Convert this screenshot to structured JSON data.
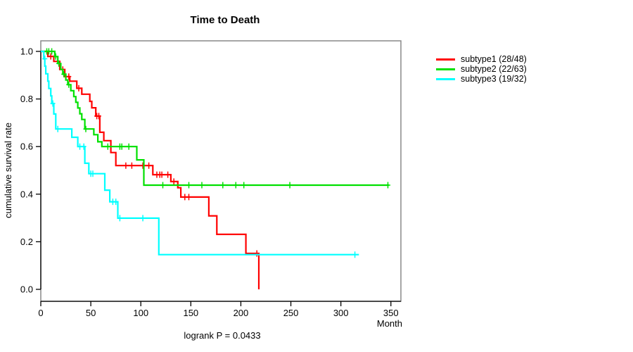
{
  "title": "Time to Death",
  "y_axis": {
    "label": "cumulative survival rate",
    "ticks": [
      0,
      0.2,
      0.4,
      0.6,
      0.8,
      1.0
    ],
    "tick_labels": [
      "0.0",
      "0.2",
      "0.4",
      "0.6",
      "0.8",
      "1.0"
    ]
  },
  "x_axis": {
    "label": "Month",
    "ticks": [
      0,
      50,
      100,
      150,
      200,
      250,
      300,
      350
    ],
    "tick_labels": [
      "0",
      "50",
      "100",
      "150",
      "200",
      "250",
      "300",
      "350"
    ]
  },
  "footer": {
    "annotation": "logrank P = 0.0433"
  },
  "legend": {
    "position": "right",
    "items": [
      {
        "label": "subtype1 (28/48)",
        "color": "#FF0000"
      },
      {
        "label": "subtype2 (22/63)",
        "color": "#00E000"
      },
      {
        "label": "subtype3 (19/32)",
        "color": "#00FFFF"
      }
    ]
  },
  "colors": {
    "plot_border": "#888888",
    "axis": "#000000",
    "text": "#000000",
    "background": "#FFFFFF"
  },
  "chart_data": {
    "type": "line",
    "variant": "kaplan-meier-step",
    "title": "Time to Death",
    "xlabel": "Month",
    "ylabel": "cumulative survival rate",
    "xlim": [
      0,
      360
    ],
    "ylim": [
      0,
      1
    ],
    "grid": false,
    "legend_position": "right-outside",
    "annotation": "logrank P = 0.0433",
    "series": [
      {
        "id": "subtype1",
        "name": "subtype1 (28/48)",
        "color": "#FF0000",
        "n": 48,
        "events": 28,
        "end_month": 218,
        "steps": [
          [
            0,
            1
          ],
          [
            7,
            0.979
          ],
          [
            13,
            0.958
          ],
          [
            19,
            0.924
          ],
          [
            24,
            0.894
          ],
          [
            29,
            0.875
          ],
          [
            36,
            0.845
          ],
          [
            41,
            0.82
          ],
          [
            49,
            0.79
          ],
          [
            51,
            0.763
          ],
          [
            55,
            0.728
          ],
          [
            59,
            0.66
          ],
          [
            63,
            0.625
          ],
          [
            70,
            0.575
          ],
          [
            75,
            0.52
          ],
          [
            112,
            0.482
          ],
          [
            130,
            0.453
          ],
          [
            137,
            0.427
          ],
          [
            140,
            0.388
          ],
          [
            168,
            0.309
          ],
          [
            176,
            0.231
          ],
          [
            205,
            0.151
          ],
          [
            218,
            0
          ]
        ],
        "censors": [
          [
            10,
            0.979
          ],
          [
            22,
            0.924
          ],
          [
            28,
            0.894
          ],
          [
            38,
            0.845
          ],
          [
            56,
            0.728
          ],
          [
            58,
            0.728
          ],
          [
            85,
            0.52
          ],
          [
            91,
            0.52
          ],
          [
            102,
            0.52
          ],
          [
            108,
            0.52
          ],
          [
            116,
            0.482
          ],
          [
            119,
            0.482
          ],
          [
            121,
            0.482
          ],
          [
            127,
            0.482
          ],
          [
            133,
            0.453
          ],
          [
            144,
            0.388
          ],
          [
            148,
            0.388
          ],
          [
            216,
            0.151
          ]
        ]
      },
      {
        "id": "subtype2",
        "name": "subtype2 (22/63)",
        "color": "#00E000",
        "n": 63,
        "events": 22,
        "end_month": 348,
        "steps": [
          [
            0,
            1
          ],
          [
            14,
            0.978
          ],
          [
            17,
            0.949
          ],
          [
            20,
            0.924
          ],
          [
            22,
            0.904
          ],
          [
            25,
            0.88
          ],
          [
            27,
            0.86
          ],
          [
            30,
            0.835
          ],
          [
            33,
            0.81
          ],
          [
            35,
            0.786
          ],
          [
            37,
            0.762
          ],
          [
            39,
            0.738
          ],
          [
            41,
            0.714
          ],
          [
            44,
            0.674
          ],
          [
            53,
            0.65
          ],
          [
            57,
            0.62
          ],
          [
            61,
            0.6
          ],
          [
            96,
            0.544
          ],
          [
            103,
            0.438
          ]
        ],
        "censors": [
          [
            6,
            1
          ],
          [
            8,
            1
          ],
          [
            11,
            1
          ],
          [
            15,
            0.978
          ],
          [
            18,
            0.949
          ],
          [
            23,
            0.904
          ],
          [
            28,
            0.86
          ],
          [
            45,
            0.674
          ],
          [
            67,
            0.6
          ],
          [
            79,
            0.6
          ],
          [
            81,
            0.6
          ],
          [
            88,
            0.6
          ],
          [
            122,
            0.438
          ],
          [
            148,
            0.438
          ],
          [
            161,
            0.438
          ],
          [
            182,
            0.438
          ],
          [
            195,
            0.438
          ],
          [
            203,
            0.438
          ],
          [
            249,
            0.438
          ],
          [
            347,
            0.438
          ]
        ]
      },
      {
        "id": "subtype3",
        "name": "subtype3 (19/32)",
        "color": "#00FFFF",
        "n": 32,
        "events": 19,
        "end_month": 318,
        "steps": [
          [
            0,
            1
          ],
          [
            3,
            0.969
          ],
          [
            4,
            0.938
          ],
          [
            5,
            0.906
          ],
          [
            7,
            0.875
          ],
          [
            8,
            0.844
          ],
          [
            10,
            0.813
          ],
          [
            11,
            0.781
          ],
          [
            13,
            0.737
          ],
          [
            15,
            0.674
          ],
          [
            31,
            0.639
          ],
          [
            37,
            0.6
          ],
          [
            44,
            0.53
          ],
          [
            48,
            0.486
          ],
          [
            64,
            0.417
          ],
          [
            69,
            0.368
          ],
          [
            77,
            0.299
          ],
          [
            118,
            0.146
          ]
        ],
        "censors": [
          [
            4,
            0.969
          ],
          [
            12,
            0.781
          ],
          [
            17,
            0.674
          ],
          [
            39,
            0.6
          ],
          [
            43,
            0.6
          ],
          [
            50,
            0.486
          ],
          [
            52,
            0.486
          ],
          [
            72,
            0.368
          ],
          [
            75,
            0.368
          ],
          [
            79,
            0.299
          ],
          [
            102,
            0.299
          ],
          [
            314,
            0.146
          ]
        ]
      }
    ]
  }
}
